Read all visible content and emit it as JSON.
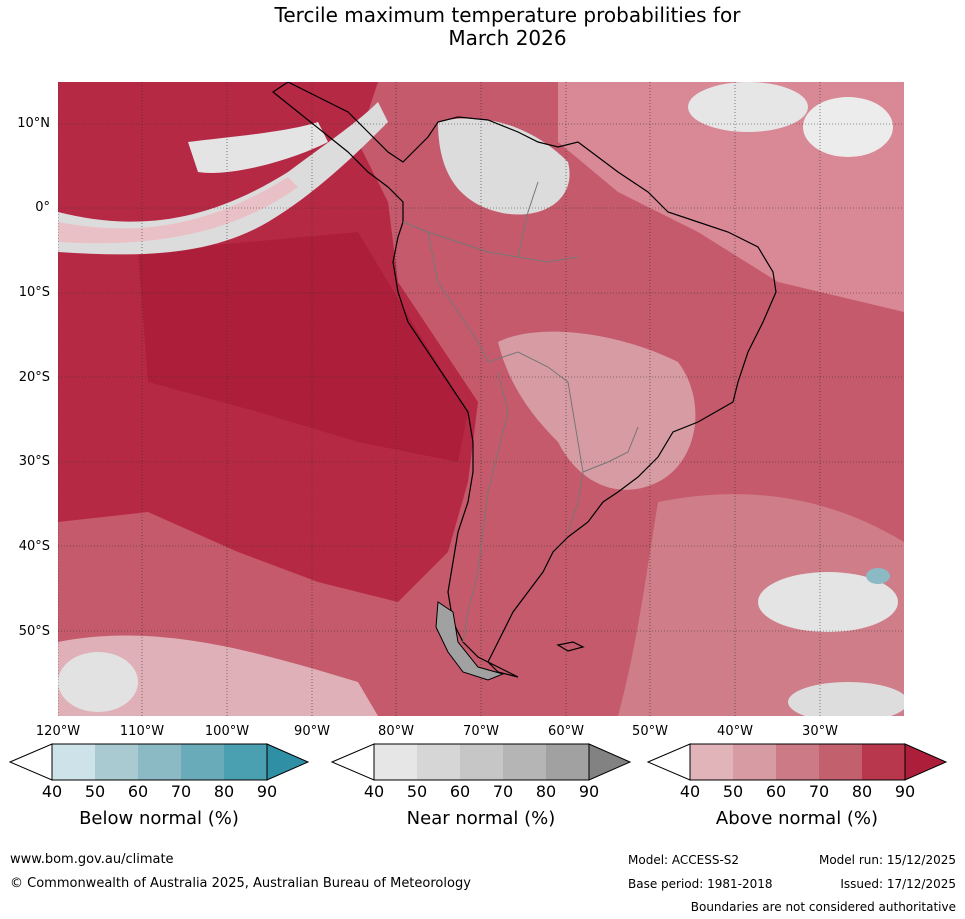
{
  "title": {
    "line1": "Tercile maximum temperature probabilities for",
    "line2": "March 2026"
  },
  "map": {
    "region": "South America",
    "lat_labels": [
      "10°N",
      "0°",
      "10°S",
      "20°S",
      "30°S",
      "40°S",
      "50°S"
    ],
    "lon_labels": [
      "120°W",
      "110°W",
      "100°W",
      "90°W",
      "80°W",
      "70°W",
      "60°W",
      "50°W",
      "40°W",
      "30°W"
    ]
  },
  "colorbars": [
    {
      "title": "Below normal (%)",
      "ticks": [
        "40",
        "50",
        "60",
        "70",
        "80",
        "90"
      ],
      "colors": [
        "#cde3e9",
        "#a9cad1",
        "#8bb9c4",
        "#6aabb9",
        "#4a9fb0",
        "#2e8fa5"
      ],
      "low_color": "#ffffff"
    },
    {
      "title": "Near normal (%)",
      "ticks": [
        "40",
        "50",
        "60",
        "70",
        "80",
        "90"
      ],
      "colors": [
        "#e6e6e6",
        "#d6d6d6",
        "#c6c6c6",
        "#b5b5b5",
        "#a1a1a1",
        "#828282"
      ],
      "low_color": "#ffffff"
    },
    {
      "title": "Above normal (%)",
      "ticks": [
        "40",
        "50",
        "60",
        "70",
        "80",
        "90"
      ],
      "colors": [
        "#e1b4ba",
        "#d79ba3",
        "#cc7a86",
        "#c2606e",
        "#b9374c",
        "#ad1e3a"
      ],
      "low_color": "#ffffff"
    }
  ],
  "footer": {
    "url": "www.bom.gov.au/climate",
    "copyright": "© Commonwealth of Australia 2025, Australian Bureau of Meteorology",
    "model": "Model: ACCESS-S2",
    "model_run": "Model run: 15/12/2025",
    "base_period": "Base period: 1981-2018",
    "issued": "Issued: 17/12/2025",
    "disclaimer": "Boundaries are not considered authoritative"
  }
}
